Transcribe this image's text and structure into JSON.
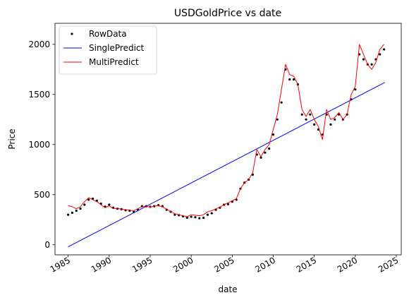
{
  "chart_data": {
    "type": "line",
    "title": "USDGoldPrice vs date",
    "xlabel": "date",
    "ylabel": "Price",
    "xlim": [
      1983.4,
      2025.6
    ],
    "ylim": [
      -100,
      2210
    ],
    "xticks": [
      1985,
      1990,
      1995,
      2000,
      2005,
      2010,
      2015,
      2020,
      2025
    ],
    "yticks": [
      0,
      500,
      1000,
      1500,
      2000
    ],
    "legend_position": "top-left",
    "grid": false,
    "series": [
      {
        "name": "RowData",
        "style": "points",
        "color": "#000000",
        "x": [
          1985.0,
          1985.5,
          1986.0,
          1986.5,
          1987.0,
          1987.5,
          1988.0,
          1988.5,
          1989.0,
          1989.5,
          1990.0,
          1990.5,
          1991.0,
          1991.5,
          1992.0,
          1992.5,
          1993.0,
          1993.5,
          1994.0,
          1994.5,
          1995.0,
          1995.5,
          1996.0,
          1996.5,
          1997.0,
          1997.5,
          1998.0,
          1998.5,
          1999.0,
          1999.5,
          2000.0,
          2000.5,
          2001.0,
          2001.5,
          2002.0,
          2002.5,
          2003.0,
          2003.5,
          2004.0,
          2004.5,
          2005.0,
          2005.5,
          2006.0,
          2006.5,
          2007.0,
          2007.5,
          2008.0,
          2008.5,
          2009.0,
          2009.5,
          2010.0,
          2010.5,
          2011.0,
          2011.5,
          2012.0,
          2012.5,
          2013.0,
          2013.5,
          2014.0,
          2014.5,
          2015.0,
          2015.5,
          2016.0,
          2016.5,
          2017.0,
          2017.5,
          2018.0,
          2018.5,
          2019.0,
          2019.5,
          2020.0,
          2020.5,
          2021.0,
          2021.5,
          2022.0,
          2022.5,
          2023.0,
          2023.5
        ],
        "values": [
          300,
          320,
          340,
          360,
          400,
          450,
          460,
          440,
          410,
          380,
          400,
          370,
          360,
          355,
          345,
          340,
          330,
          350,
          385,
          385,
          380,
          385,
          395,
          385,
          350,
          330,
          300,
          295,
          285,
          270,
          280,
          275,
          265,
          270,
          300,
          315,
          350,
          370,
          400,
          405,
          430,
          450,
          560,
          620,
          650,
          700,
          900,
          870,
          920,
          960,
          1100,
          1250,
          1420,
          1750,
          1650,
          1650,
          1600,
          1300,
          1250,
          1300,
          1200,
          1150,
          1100,
          1300,
          1200,
          1250,
          1300,
          1250,
          1300,
          1450,
          1550,
          1900,
          1850,
          1800,
          1800,
          1850,
          1900,
          1950
        ]
      },
      {
        "name": "SinglePredict",
        "style": "line",
        "color": "#0000ff",
        "x": [
          1985.0,
          2023.6
        ],
        "values": [
          -20,
          1620
        ]
      },
      {
        "name": "MultiPredict",
        "style": "line",
        "color": "#ff0000",
        "x": [
          1985.0,
          1985.5,
          1986.0,
          1986.5,
          1987.0,
          1987.5,
          1988.0,
          1988.5,
          1989.0,
          1989.5,
          1990.0,
          1990.5,
          1991.0,
          1991.5,
          1992.0,
          1992.5,
          1993.0,
          1993.5,
          1994.0,
          1994.5,
          1995.0,
          1995.5,
          1996.0,
          1996.5,
          1997.0,
          1997.5,
          1998.0,
          1998.5,
          1999.0,
          1999.5,
          2000.0,
          2000.5,
          2001.0,
          2001.5,
          2002.0,
          2002.5,
          2003.0,
          2003.5,
          2004.0,
          2004.5,
          2005.0,
          2005.5,
          2006.0,
          2006.5,
          2007.0,
          2007.5,
          2008.0,
          2008.5,
          2009.0,
          2009.5,
          2010.0,
          2010.5,
          2011.0,
          2011.5,
          2012.0,
          2012.5,
          2013.0,
          2013.5,
          2014.0,
          2014.5,
          2015.0,
          2015.5,
          2016.0,
          2016.5,
          2017.0,
          2017.5,
          2018.0,
          2018.5,
          2019.0,
          2019.5,
          2020.0,
          2020.5,
          2021.0,
          2021.5,
          2022.0,
          2022.5,
          2023.0,
          2023.5
        ],
        "values": [
          390,
          380,
          360,
          380,
          430,
          470,
          450,
          430,
          400,
          370,
          390,
          360,
          365,
          355,
          350,
          345,
          340,
          360,
          380,
          385,
          375,
          385,
          390,
          380,
          355,
          330,
          310,
          300,
          290,
          280,
          300,
          295,
          290,
          300,
          330,
          340,
          360,
          375,
          400,
          420,
          440,
          460,
          560,
          620,
          650,
          720,
          950,
          880,
          950,
          1000,
          1150,
          1300,
          1550,
          1800,
          1700,
          1680,
          1600,
          1350,
          1280,
          1350,
          1250,
          1180,
          1050,
          1350,
          1250,
          1270,
          1320,
          1250,
          1300,
          1500,
          1580,
          2000,
          1900,
          1800,
          1750,
          1820,
          1950,
          2000
        ]
      }
    ]
  }
}
